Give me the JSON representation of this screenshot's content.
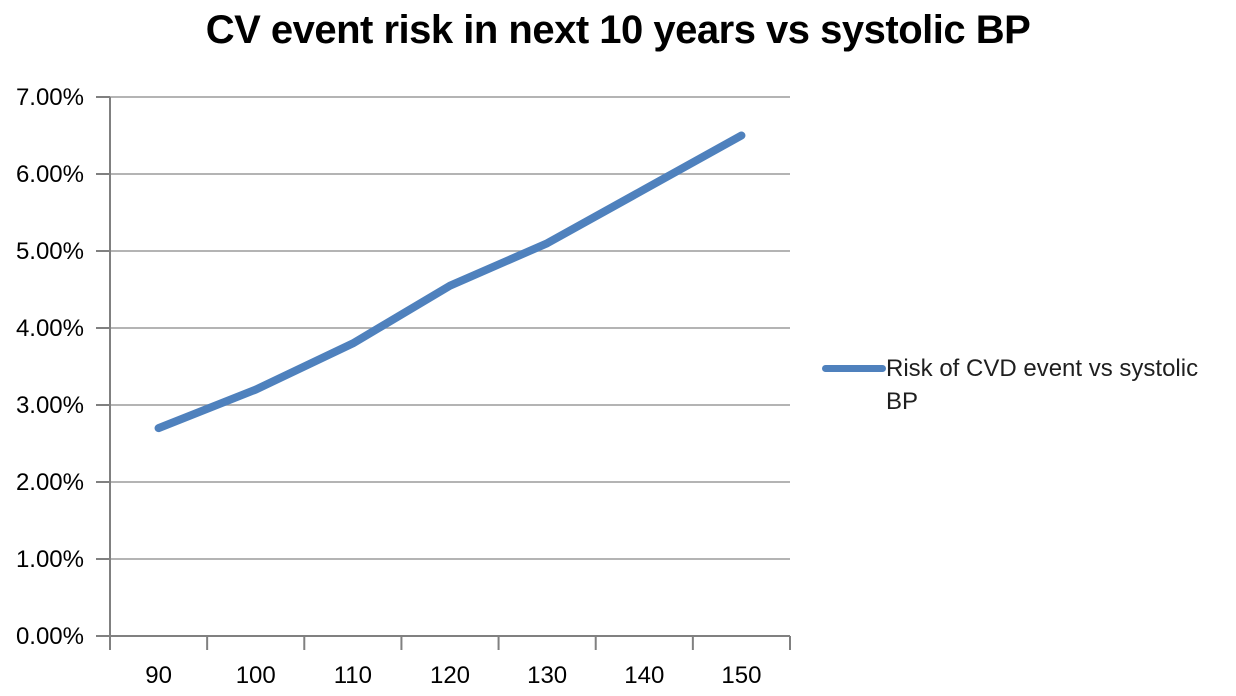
{
  "chart_data": {
    "type": "line",
    "title": "CV event risk in next 10 years vs systolic BP",
    "categories": [
      "90",
      "100",
      "110",
      "120",
      "130",
      "140",
      "150"
    ],
    "series": [
      {
        "name": "Risk of CVD event vs systolic BP",
        "values": [
          2.7,
          3.2,
          3.8,
          4.55,
          5.1,
          5.8,
          6.5
        ]
      }
    ],
    "y_tick_labels": [
      "0.00%",
      "1.00%",
      "2.00%",
      "3.00%",
      "4.00%",
      "5.00%",
      "6.00%",
      "7.00%"
    ],
    "ylim": [
      0,
      7
    ],
    "xlabel": "",
    "ylabel": "",
    "grid": "horizontal",
    "legend_position": "right",
    "colors": {
      "line": "#4F81BD",
      "gridline": "#9C9C9C",
      "axis": "#808080",
      "text": "#000000",
      "background": "#FFFFFF"
    }
  }
}
